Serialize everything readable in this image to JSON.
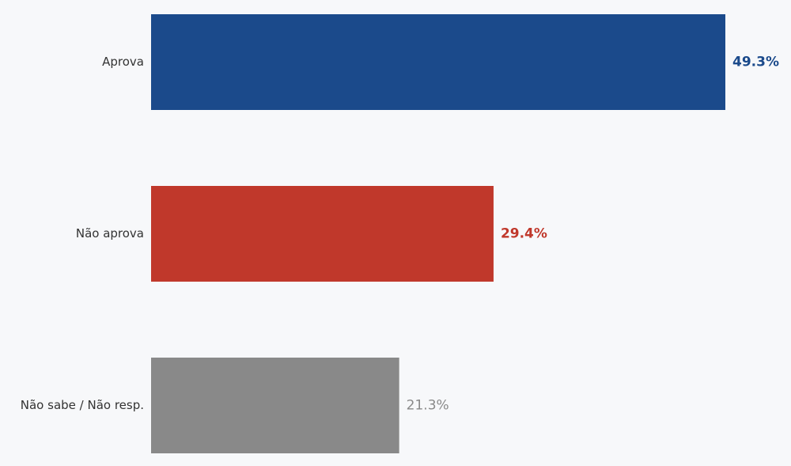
{
  "chart_data": {
    "type": "bar",
    "categories": [
      "Aprova",
      "Não aprova",
      "Não sabe / Não resp."
    ],
    "values": [
      49.3,
      29.4,
      21.3
    ],
    "value_labels": [
      "49.3%",
      "29.4%",
      "21.3%"
    ],
    "colors": [
      "#1b4a8b",
      "#c0382b",
      "#898989"
    ]
  }
}
